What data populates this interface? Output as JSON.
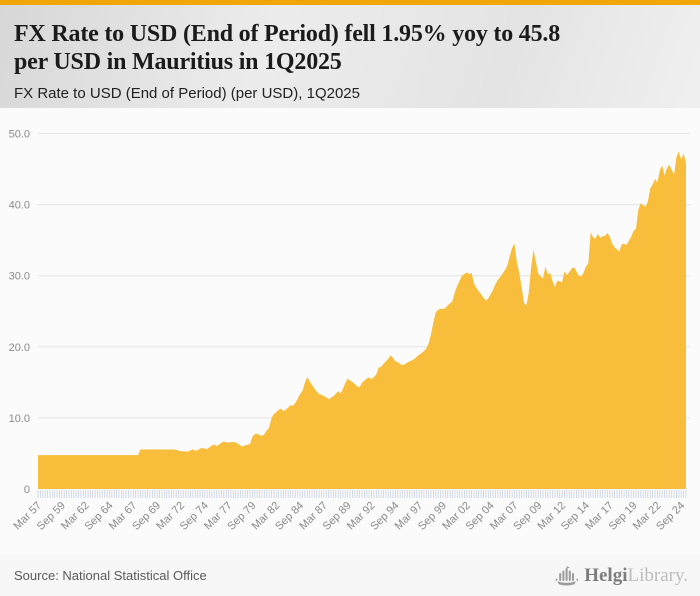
{
  "header": {
    "title_line1": "FX Rate to USD (End of Period) fell 1.95% yoy to 45.8",
    "title_line2": "per USD in Mauritius in 1Q2025",
    "subtitle": "FX Rate to USD (End of Period) (per USD), 1Q2025"
  },
  "footer": {
    "source": "Source: National Statistical Office",
    "brand_dark": "Helgi",
    "brand_light": "Library."
  },
  "theme": {
    "topbar": "#f2a508",
    "area": "#f7bd3b",
    "grid": "#e4e4e4",
    "axis_text": "#8a8a8a",
    "minor_tick": "#c7d0e2",
    "plot_bg": "#fbfbfb"
  },
  "chart_data": {
    "type": "area",
    "title": "FX Rate to USD (End of Period) (per USD), 1Q2025",
    "series_name": "FX Rate to USD (End of Period), Mauritius, per USD",
    "frequency": "quarterly",
    "x_start": "1957Q1",
    "x_end": "2025Q1",
    "x_tick_every": 10,
    "x_tick_labels": [
      "Mar 57",
      "Sep 59",
      "Mar 62",
      "Sep 64",
      "Mar 67",
      "Sep 69",
      "Mar 72",
      "Sep 74",
      "Mar 77",
      "Sep 79",
      "Mar 82",
      "Sep 84",
      "Mar 87",
      "Sep 89",
      "Mar 92",
      "Sep 94",
      "Mar 97",
      "Sep 99",
      "Mar 02",
      "Sep 04",
      "Mar 07",
      "Sep 09",
      "Mar 12",
      "Sep 14",
      "Mar 17",
      "Sep 19",
      "Mar 22",
      "Sep 24"
    ],
    "y_ticks": [
      0,
      10,
      20,
      30,
      40,
      50
    ],
    "y_tick_labels": [
      "0",
      "10.0",
      "20.0",
      "30.0",
      "40.0",
      "50.0"
    ],
    "ylim": [
      0,
      52
    ],
    "grid": true,
    "legend": false,
    "last_value": 45.8,
    "yoy_change_pct": -1.95,
    "values": [
      4.76,
      4.76,
      4.76,
      4.76,
      4.76,
      4.76,
      4.76,
      4.76,
      4.76,
      4.76,
      4.76,
      4.76,
      4.76,
      4.76,
      4.76,
      4.76,
      4.76,
      4.76,
      4.76,
      4.76,
      4.76,
      4.76,
      4.76,
      4.76,
      4.76,
      4.76,
      4.76,
      4.76,
      4.76,
      4.76,
      4.76,
      4.76,
      4.76,
      4.76,
      4.76,
      4.76,
      4.76,
      4.76,
      4.76,
      4.76,
      4.76,
      4.76,
      4.76,
      5.56,
      5.56,
      5.56,
      5.56,
      5.56,
      5.56,
      5.56,
      5.56,
      5.56,
      5.56,
      5.56,
      5.56,
      5.56,
      5.56,
      5.56,
      5.52,
      5.38,
      5.34,
      5.3,
      5.27,
      5.26,
      5.44,
      5.56,
      5.42,
      5.44,
      5.7,
      5.76,
      5.68,
      5.6,
      5.89,
      6.1,
      6.3,
      6.02,
      6.25,
      6.5,
      6.68,
      6.55,
      6.52,
      6.58,
      6.62,
      6.55,
      6.35,
      6.1,
      5.97,
      6.16,
      6.22,
      6.35,
      7.35,
      7.72,
      7.75,
      7.62,
      7.45,
      7.69,
      8.25,
      8.6,
      9.95,
      10.55,
      10.8,
      11.15,
      11.3,
      10.95,
      11.15,
      11.45,
      11.8,
      11.7,
      12.1,
      12.7,
      13.35,
      13.8,
      14.9,
      15.75,
      15.15,
      14.65,
      14.15,
      13.7,
      13.35,
      13.25,
      13.05,
      12.9,
      12.6,
      12.85,
      13.05,
      13.4,
      13.75,
      13.45,
      14.1,
      14.9,
      15.55,
      15.25,
      15.05,
      14.75,
      14.45,
      14.3,
      14.95,
      15.25,
      15.55,
      15.7,
      15.45,
      15.75,
      16.1,
      17.05,
      17.2,
      17.6,
      17.95,
      18.3,
      18.8,
      18.45,
      17.95,
      17.85,
      17.6,
      17.4,
      17.55,
      17.8,
      17.95,
      18.1,
      18.3,
      18.6,
      18.9,
      19.1,
      19.4,
      19.8,
      20.5,
      21.8,
      23.5,
      24.9,
      25.2,
      25.35,
      25.3,
      25.45,
      25.85,
      26.1,
      26.45,
      27.7,
      28.6,
      29.3,
      30.0,
      30.25,
      30.45,
      30.2,
      30.4,
      28.9,
      28.3,
      27.8,
      27.4,
      26.9,
      26.5,
      26.8,
      27.4,
      28.0,
      28.8,
      29.4,
      29.8,
      30.3,
      30.8,
      31.4,
      32.7,
      33.9,
      34.5,
      31.9,
      30.4,
      28.4,
      26.2,
      25.8,
      27.6,
      31.2,
      33.7,
      31.9,
      30.3,
      29.9,
      29.6,
      31.3,
      30.2,
      30.4,
      29.2,
      28.4,
      29.3,
      29.2,
      29.1,
      30.6,
      30.1,
      30.5,
      31.0,
      31.2,
      30.6,
      30.0,
      29.9,
      30.4,
      31.3,
      31.7,
      36.1,
      35.4,
      35.2,
      35.9,
      35.3,
      35.55,
      35.6,
      36.0,
      35.5,
      34.5,
      34.0,
      33.7,
      33.4,
      34.4,
      34.5,
      34.3,
      34.9,
      35.5,
      36.3,
      36.6,
      39.3,
      40.2,
      39.9,
      39.7,
      40.4,
      42.3,
      42.8,
      43.6,
      43.1,
      44.8,
      45.5,
      44.1,
      45.1,
      45.6,
      44.9,
      44.2,
      46.7,
      47.45,
      46.3,
      47.2,
      45.8
    ]
  }
}
